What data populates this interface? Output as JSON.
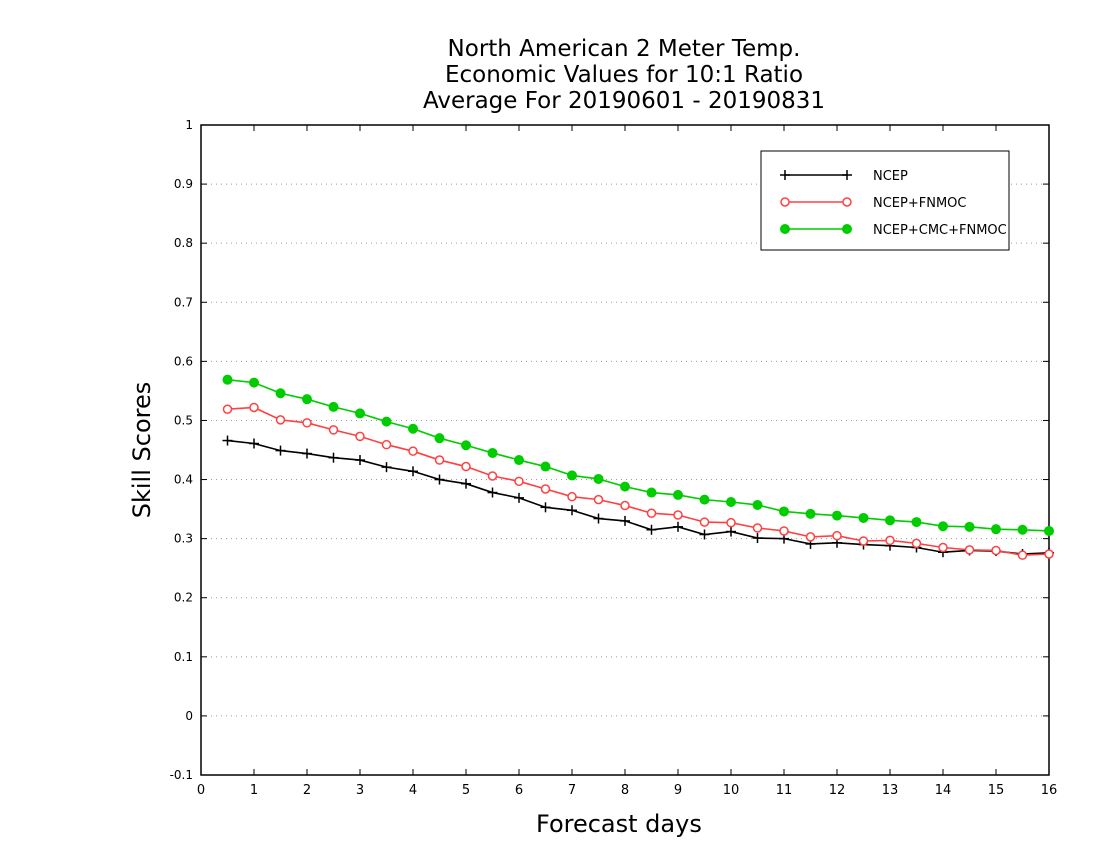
{
  "chart_data": {
    "type": "line",
    "title": [
      "North American 2 Meter Temp.",
      "Economic Values for 10:1 Ratio",
      "Average For 20190601 - 20190831"
    ],
    "xlabel": "Forecast days",
    "ylabel": "Skill Scores",
    "xlim": [
      0,
      16
    ],
    "ylim": [
      -0.1,
      1
    ],
    "xticks": [
      "0",
      "1",
      "2",
      "3",
      "4",
      "5",
      "6",
      "7",
      "8",
      "9",
      "10",
      "11",
      "12",
      "13",
      "14",
      "15",
      "16"
    ],
    "yticks": [
      "-0.1",
      "0",
      "0.1",
      "0.2",
      "0.3",
      "0.4",
      "0.5",
      "0.6",
      "0.7",
      "0.8",
      "0.9",
      "1"
    ],
    "grid": "dotted horizontal",
    "legend_position": "top-right",
    "x": [
      0.5,
      1,
      1.5,
      2,
      2.5,
      3,
      3.5,
      4,
      4.5,
      5,
      5.5,
      6,
      6.5,
      7,
      7.5,
      8,
      8.5,
      9,
      9.5,
      10,
      10.5,
      11,
      11.5,
      12,
      12.5,
      13,
      13.5,
      14,
      14.5,
      15,
      15.5,
      16
    ],
    "series": [
      {
        "name": "NCEP",
        "color": "#000000",
        "marker": "plus",
        "values": [
          0.466,
          0.461,
          0.449,
          0.444,
          0.437,
          0.433,
          0.421,
          0.414,
          0.4,
          0.393,
          0.378,
          0.369,
          0.353,
          0.348,
          0.334,
          0.33,
          0.315,
          0.32,
          0.307,
          0.312,
          0.301,
          0.3,
          0.291,
          0.293,
          0.29,
          0.288,
          0.285,
          0.277,
          0.28,
          0.279,
          0.274,
          0.276
        ]
      },
      {
        "name": "NCEP+FNMOC",
        "color": "#ff4040",
        "marker": "open-circle",
        "values": [
          0.519,
          0.522,
          0.501,
          0.496,
          0.484,
          0.473,
          0.459,
          0.448,
          0.433,
          0.422,
          0.406,
          0.397,
          0.384,
          0.371,
          0.366,
          0.356,
          0.343,
          0.34,
          0.328,
          0.327,
          0.318,
          0.313,
          0.303,
          0.305,
          0.296,
          0.297,
          0.292,
          0.285,
          0.281,
          0.28,
          0.272,
          0.274
        ]
      },
      {
        "name": "NCEP+CMC+FNMOC",
        "color": "#00cc00",
        "marker": "filled-circle",
        "values": [
          0.569,
          0.564,
          0.546,
          0.536,
          0.523,
          0.512,
          0.498,
          0.486,
          0.47,
          0.458,
          0.445,
          0.433,
          0.422,
          0.407,
          0.401,
          0.388,
          0.378,
          0.374,
          0.366,
          0.362,
          0.357,
          0.346,
          0.342,
          0.339,
          0.335,
          0.331,
          0.328,
          0.321,
          0.32,
          0.316,
          0.315,
          0.313
        ]
      }
    ]
  }
}
